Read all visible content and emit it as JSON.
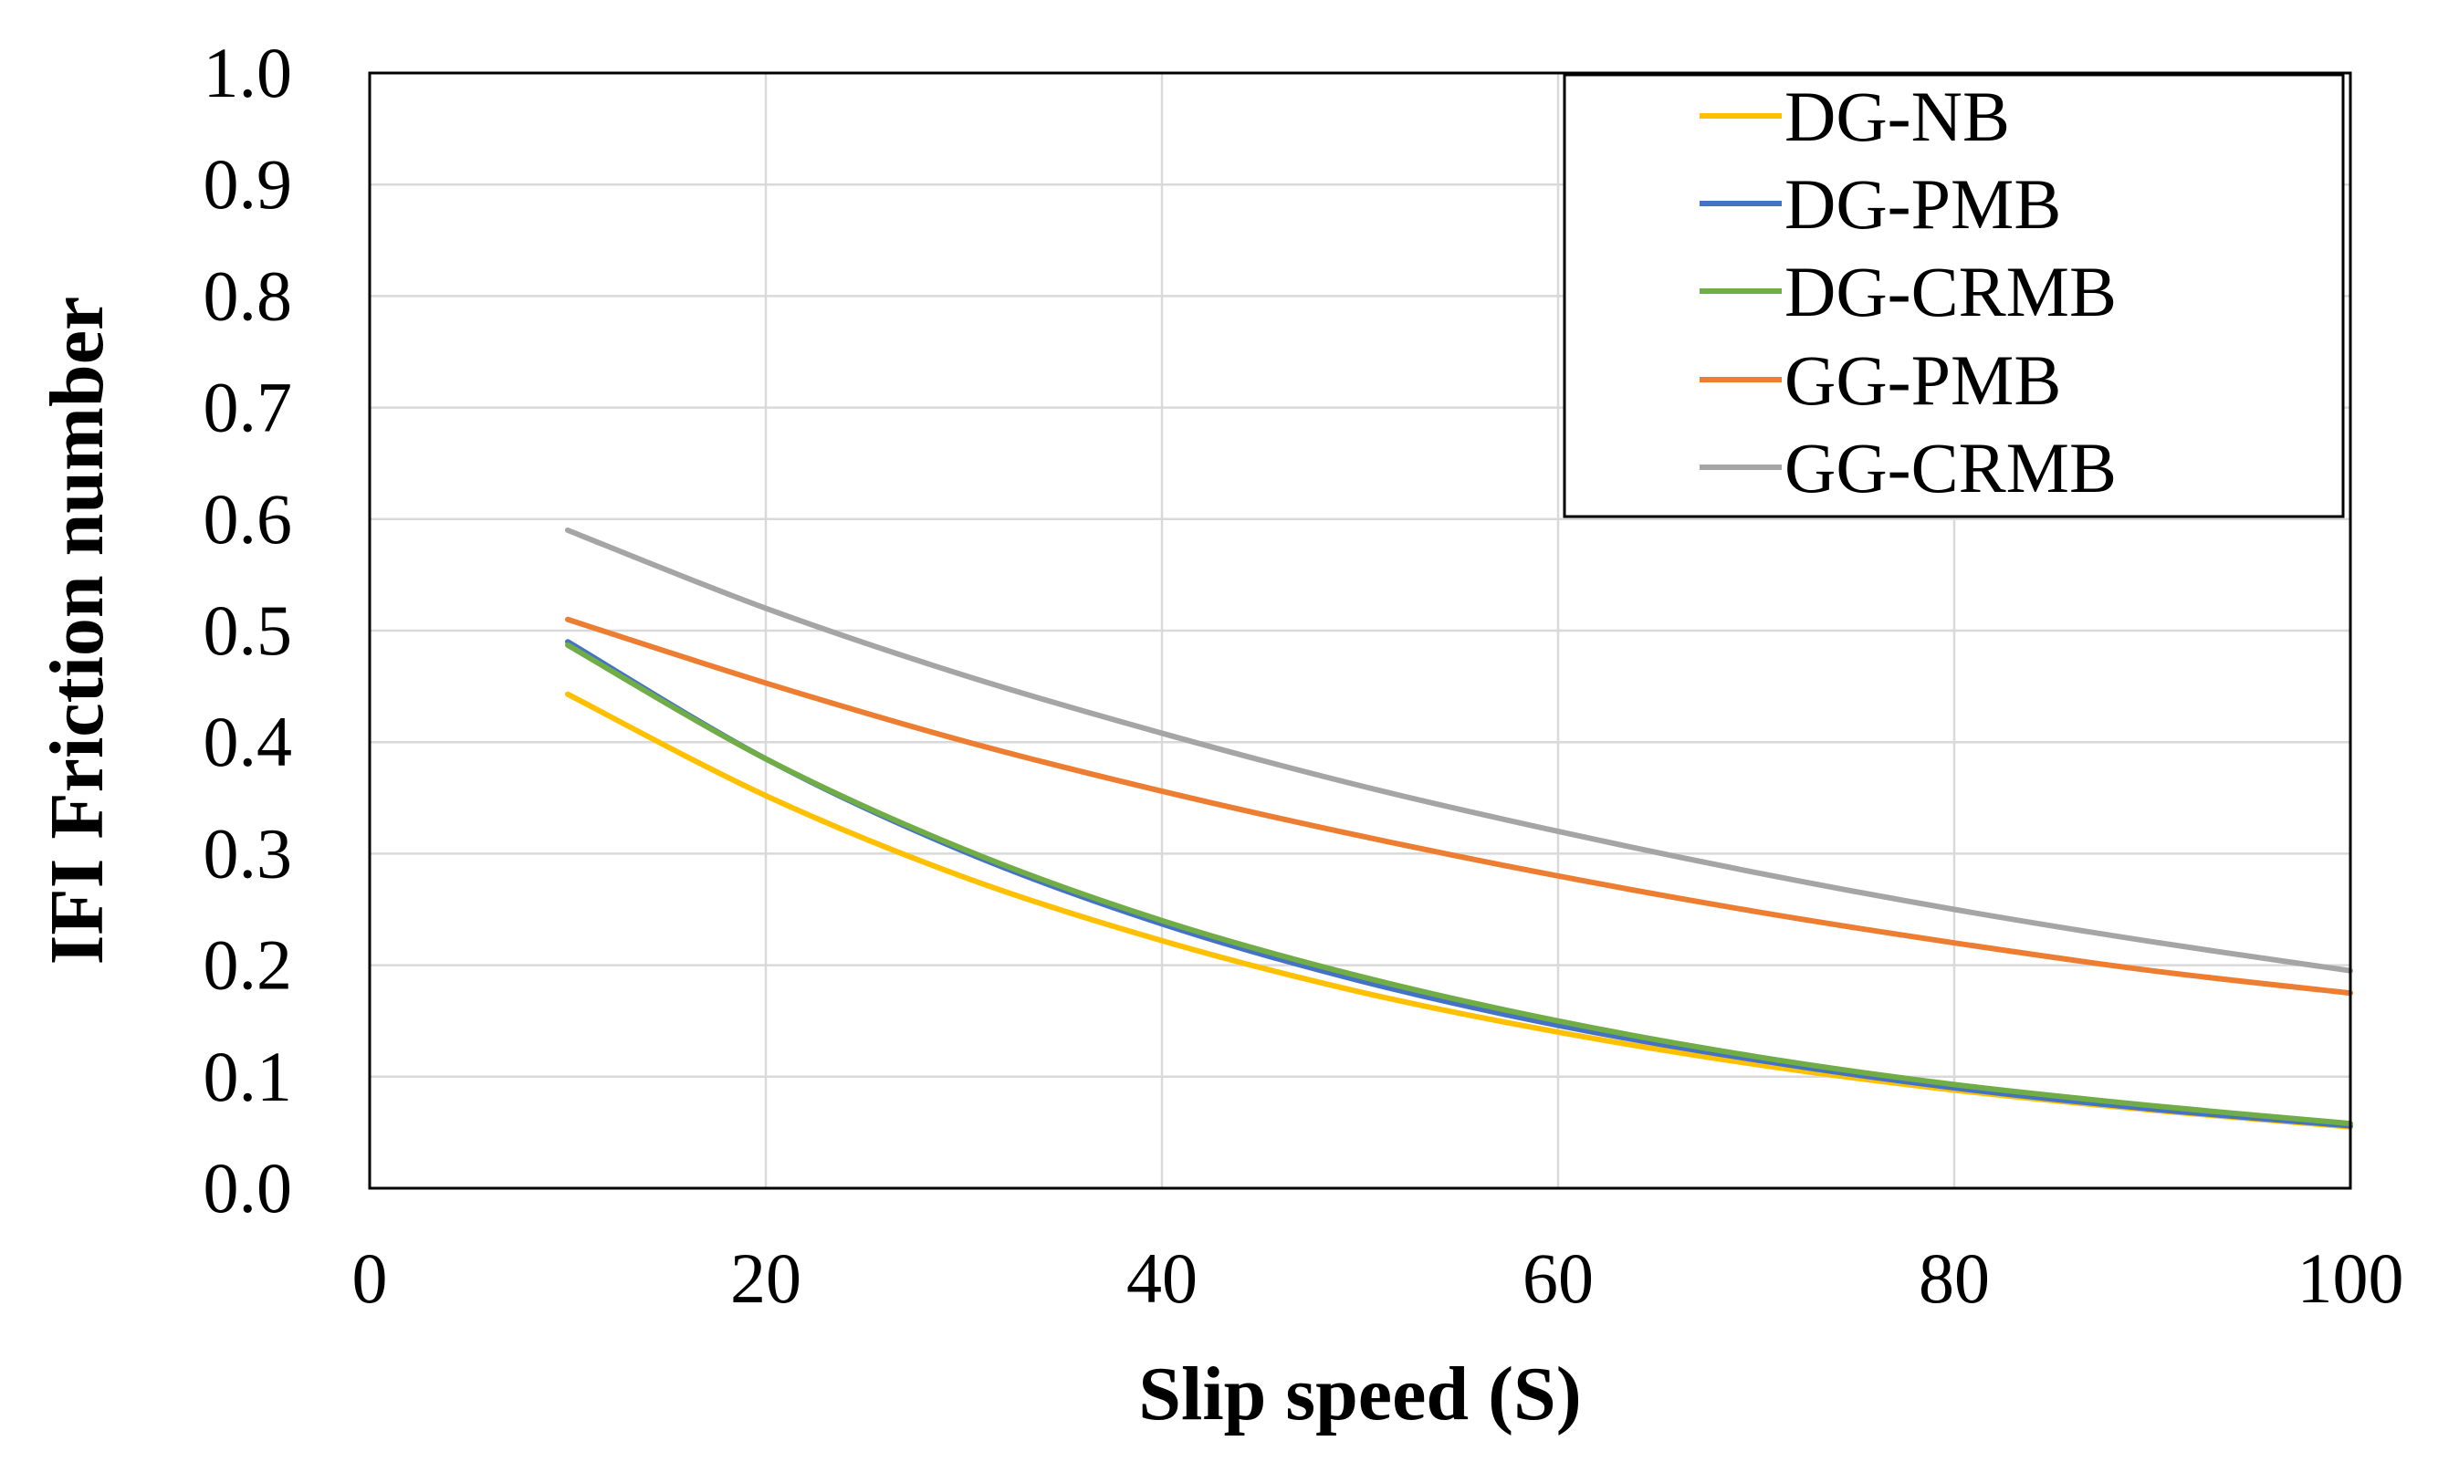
{
  "chart_data": {
    "type": "line",
    "title": "",
    "xlabel": "Slip speed (S)",
    "ylabel": "IFI Friction number",
    "xlim": [
      0,
      100
    ],
    "ylim": [
      0.0,
      1.0
    ],
    "x_ticks": [
      "0",
      "20",
      "40",
      "60",
      "80",
      "100"
    ],
    "y_ticks": [
      "0.0",
      "0.1",
      "0.2",
      "0.3",
      "0.4",
      "0.5",
      "0.6",
      "0.7",
      "0.8",
      "0.9",
      "1.0"
    ],
    "grid": true,
    "legend_position": "top-right",
    "x": [
      10,
      20,
      30,
      40,
      50,
      60,
      70,
      80,
      90,
      100
    ],
    "series": [
      {
        "name": "DG-NB",
        "color": "#ffc000",
        "values": [
          0.443,
          0.352,
          0.279,
          0.222,
          0.176,
          0.14,
          0.111,
          0.088,
          0.07,
          0.055
        ]
      },
      {
        "name": "DG-PMB",
        "color": "#4472c4",
        "values": [
          0.49,
          0.385,
          0.302,
          0.237,
          0.186,
          0.146,
          0.115,
          0.09,
          0.071,
          0.056
        ]
      },
      {
        "name": "DG-CRMB",
        "color": "#70ad47",
        "values": [
          0.487,
          0.385,
          0.304,
          0.24,
          0.19,
          0.15,
          0.118,
          0.093,
          0.074,
          0.058
        ]
      },
      {
        "name": "GG-PMB",
        "color": "#ed7d31",
        "values": [
          0.51,
          0.453,
          0.401,
          0.356,
          0.316,
          0.28,
          0.248,
          0.22,
          0.195,
          0.175
        ]
      },
      {
        "name": "GG-CRMB",
        "color": "#a5a5a5",
        "values": [
          0.59,
          0.52,
          0.46,
          0.408,
          0.361,
          0.32,
          0.283,
          0.25,
          0.221,
          0.195
        ]
      }
    ]
  }
}
